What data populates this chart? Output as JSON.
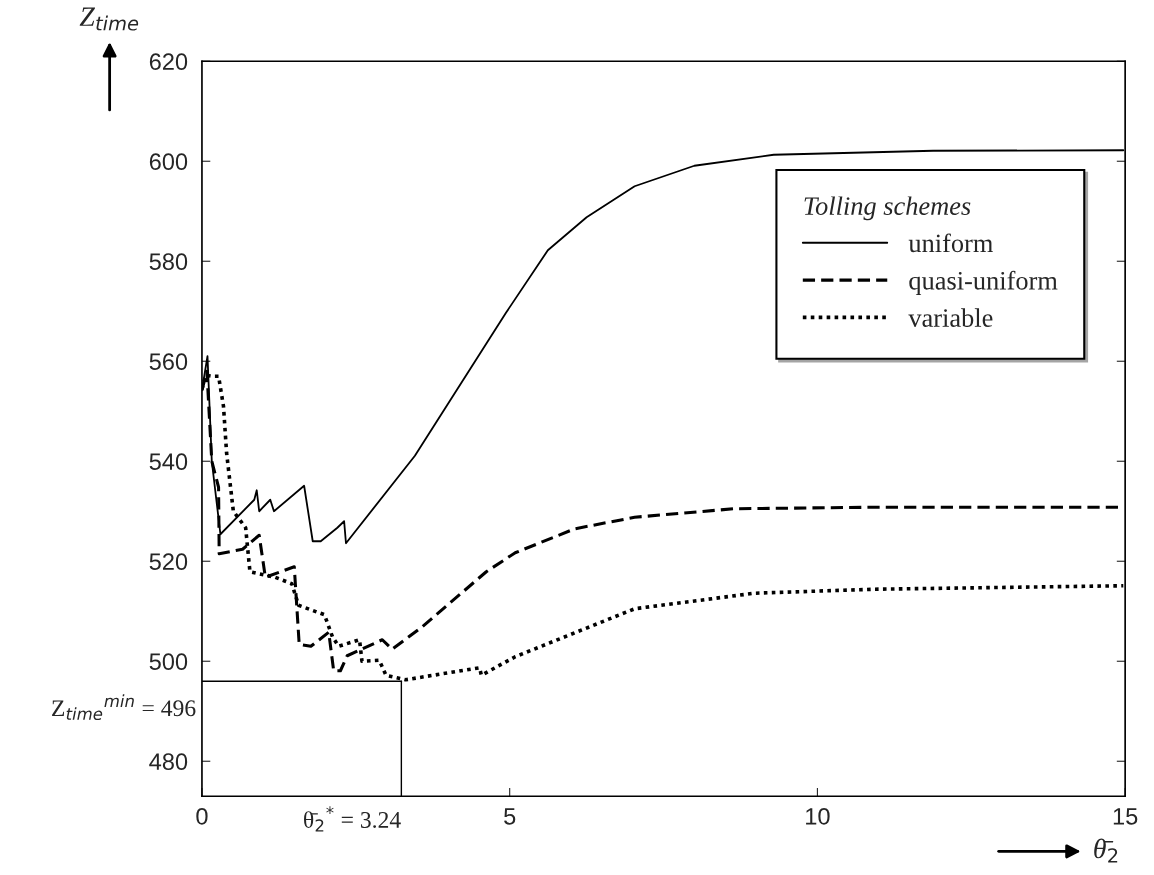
{
  "chart_data": {
    "type": "line",
    "xlabel": "θ̄$_{2}$",
    "ylabel": "Z$_{time}$",
    "legend_title": "Tolling schemes",
    "legend": "top right",
    "grid": false,
    "xlim": [
      0,
      15
    ],
    "xticks": [
      0,
      5,
      10,
      15
    ],
    "ylim": [
      473,
      620
    ],
    "yticks": [
      480,
      500,
      520,
      540,
      560,
      580,
      600,
      620
    ],
    "series": [
      {
        "name": "uniform",
        "color": "#000000",
        "line_style": "solid",
        "x": [
          0,
          0.09,
          0.16,
          0.3,
          0.85,
          0.89,
          0.93,
          1.11,
          1.17,
          1.66,
          1.8,
          1.93,
          2.2,
          2.31,
          2.34,
          3.46,
          4.94,
          5.62,
          6.25,
          7.03,
          8.0,
          9.29,
          11.88,
          14.97
        ],
        "values": [
          554.2,
          561,
          540,
          525.4,
          532.3,
          534.2,
          530,
          532.3,
          530,
          535.1,
          524,
          524,
          526.7,
          528,
          523.6,
          541.1,
          569.7,
          582.2,
          588.8,
          595,
          599.1,
          601.3,
          602.1,
          602.2
        ]
      },
      {
        "name": "quasi-uniform",
        "color": "#000000",
        "line_style": "dashed",
        "x": [
          0,
          0.08,
          0.16,
          0.27,
          0.28,
          0.66,
          0.93,
          1.03,
          1.5,
          1.58,
          1.77,
          2.06,
          2.14,
          2.25,
          2.36,
          2.93,
          3.09,
          3.56,
          4.62,
          5.09,
          6.06,
          7.03,
          8.64,
          10.9,
          14.97
        ],
        "values": [
          554.2,
          558,
          540,
          534.8,
          521.5,
          522.4,
          525.2,
          516.8,
          518.9,
          503.4,
          503,
          505.8,
          498.1,
          498.1,
          501.1,
          504.3,
          502.4,
          506.7,
          517.9,
          521.7,
          526.5,
          528.8,
          530.5,
          530.8,
          530.8
        ]
      },
      {
        "name": "variable",
        "color": "#000000",
        "line_style": "dotted",
        "x": [
          0,
          0.06,
          0.16,
          0.27,
          0.35,
          0.4,
          0.51,
          0.71,
          0.78,
          1.19,
          1.46,
          1.57,
          1.99,
          2.12,
          2.22,
          2.56,
          2.6,
          2.88,
          2.99,
          3.31,
          4.51,
          4.54,
          5.09,
          7.03,
          8.97,
          10.9,
          14.97
        ],
        "values": [
          554.4,
          557.2,
          557,
          557,
          551,
          541.7,
          530,
          526.7,
          517.9,
          516.8,
          515.5,
          511.2,
          509.3,
          504.9,
          503,
          504.3,
          500,
          500.2,
          497.2,
          496.3,
          498.7,
          497.2,
          500.9,
          510.5,
          513.6,
          514.4,
          515.1
        ]
      }
    ],
    "ref_lines": [
      {
        "axis": "y",
        "value": 496,
        "label": "Z$_{time}$$^{min}$ = 496",
        "line_style": "solid",
        "color": "#000000"
      },
      {
        "axis": "x",
        "value": 3.24,
        "label": "θ̄$_{2}$$^{*}$ = 3.24",
        "line_style": "solid",
        "color": "#000000"
      }
    ]
  }
}
